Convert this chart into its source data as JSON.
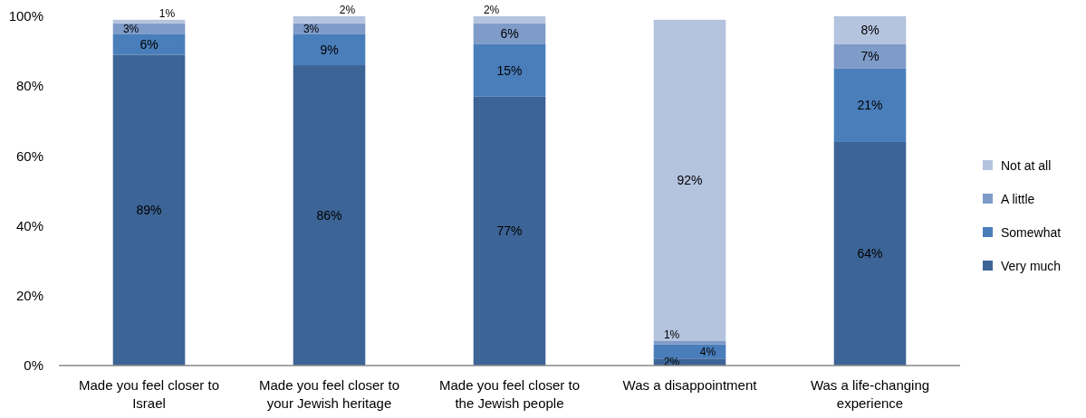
{
  "chart_data": {
    "type": "bar",
    "stacked": true,
    "categories": [
      "Made you feel closer to Israel",
      "Made you feel closer to your Jewish heritage",
      "Made you feel closer to the Jewish people",
      "Was a disappointment",
      "Was a life-changing experience"
    ],
    "series": [
      {
        "name": "Very much",
        "color": "#3d6496",
        "values": [
          89,
          86,
          77,
          2,
          64
        ],
        "value_labels": [
          "89%",
          "86%",
          "77%",
          "2%",
          "64%"
        ]
      },
      {
        "name": "Somewhat",
        "color": "#4a7ebb",
        "values": [
          6,
          9,
          15,
          4,
          21
        ],
        "value_labels": [
          "6%",
          "9%",
          "15%",
          "4%",
          "21%"
        ]
      },
      {
        "name": "A little",
        "color": "#7f9bc8",
        "values": [
          3,
          3,
          6,
          1,
          7
        ],
        "value_labels": [
          "3%",
          "3%",
          "6%",
          "1%",
          "7%"
        ]
      },
      {
        "name": "Not at all",
        "color": "#b4c3de",
        "values": [
          1,
          2,
          2,
          92,
          8
        ],
        "value_labels": [
          "1%",
          "2%",
          "2%",
          "92%",
          "8%"
        ]
      }
    ],
    "ylim": [
      0,
      100
    ],
    "yticks": [
      {
        "value": 0,
        "label": "0%"
      },
      {
        "value": 20,
        "label": "20%"
      },
      {
        "value": 40,
        "label": "40%"
      },
      {
        "value": 60,
        "label": "60%"
      },
      {
        "value": 80,
        "label": "80%"
      },
      {
        "value": 100,
        "label": "100%"
      }
    ],
    "grid": false,
    "legend": "right"
  }
}
